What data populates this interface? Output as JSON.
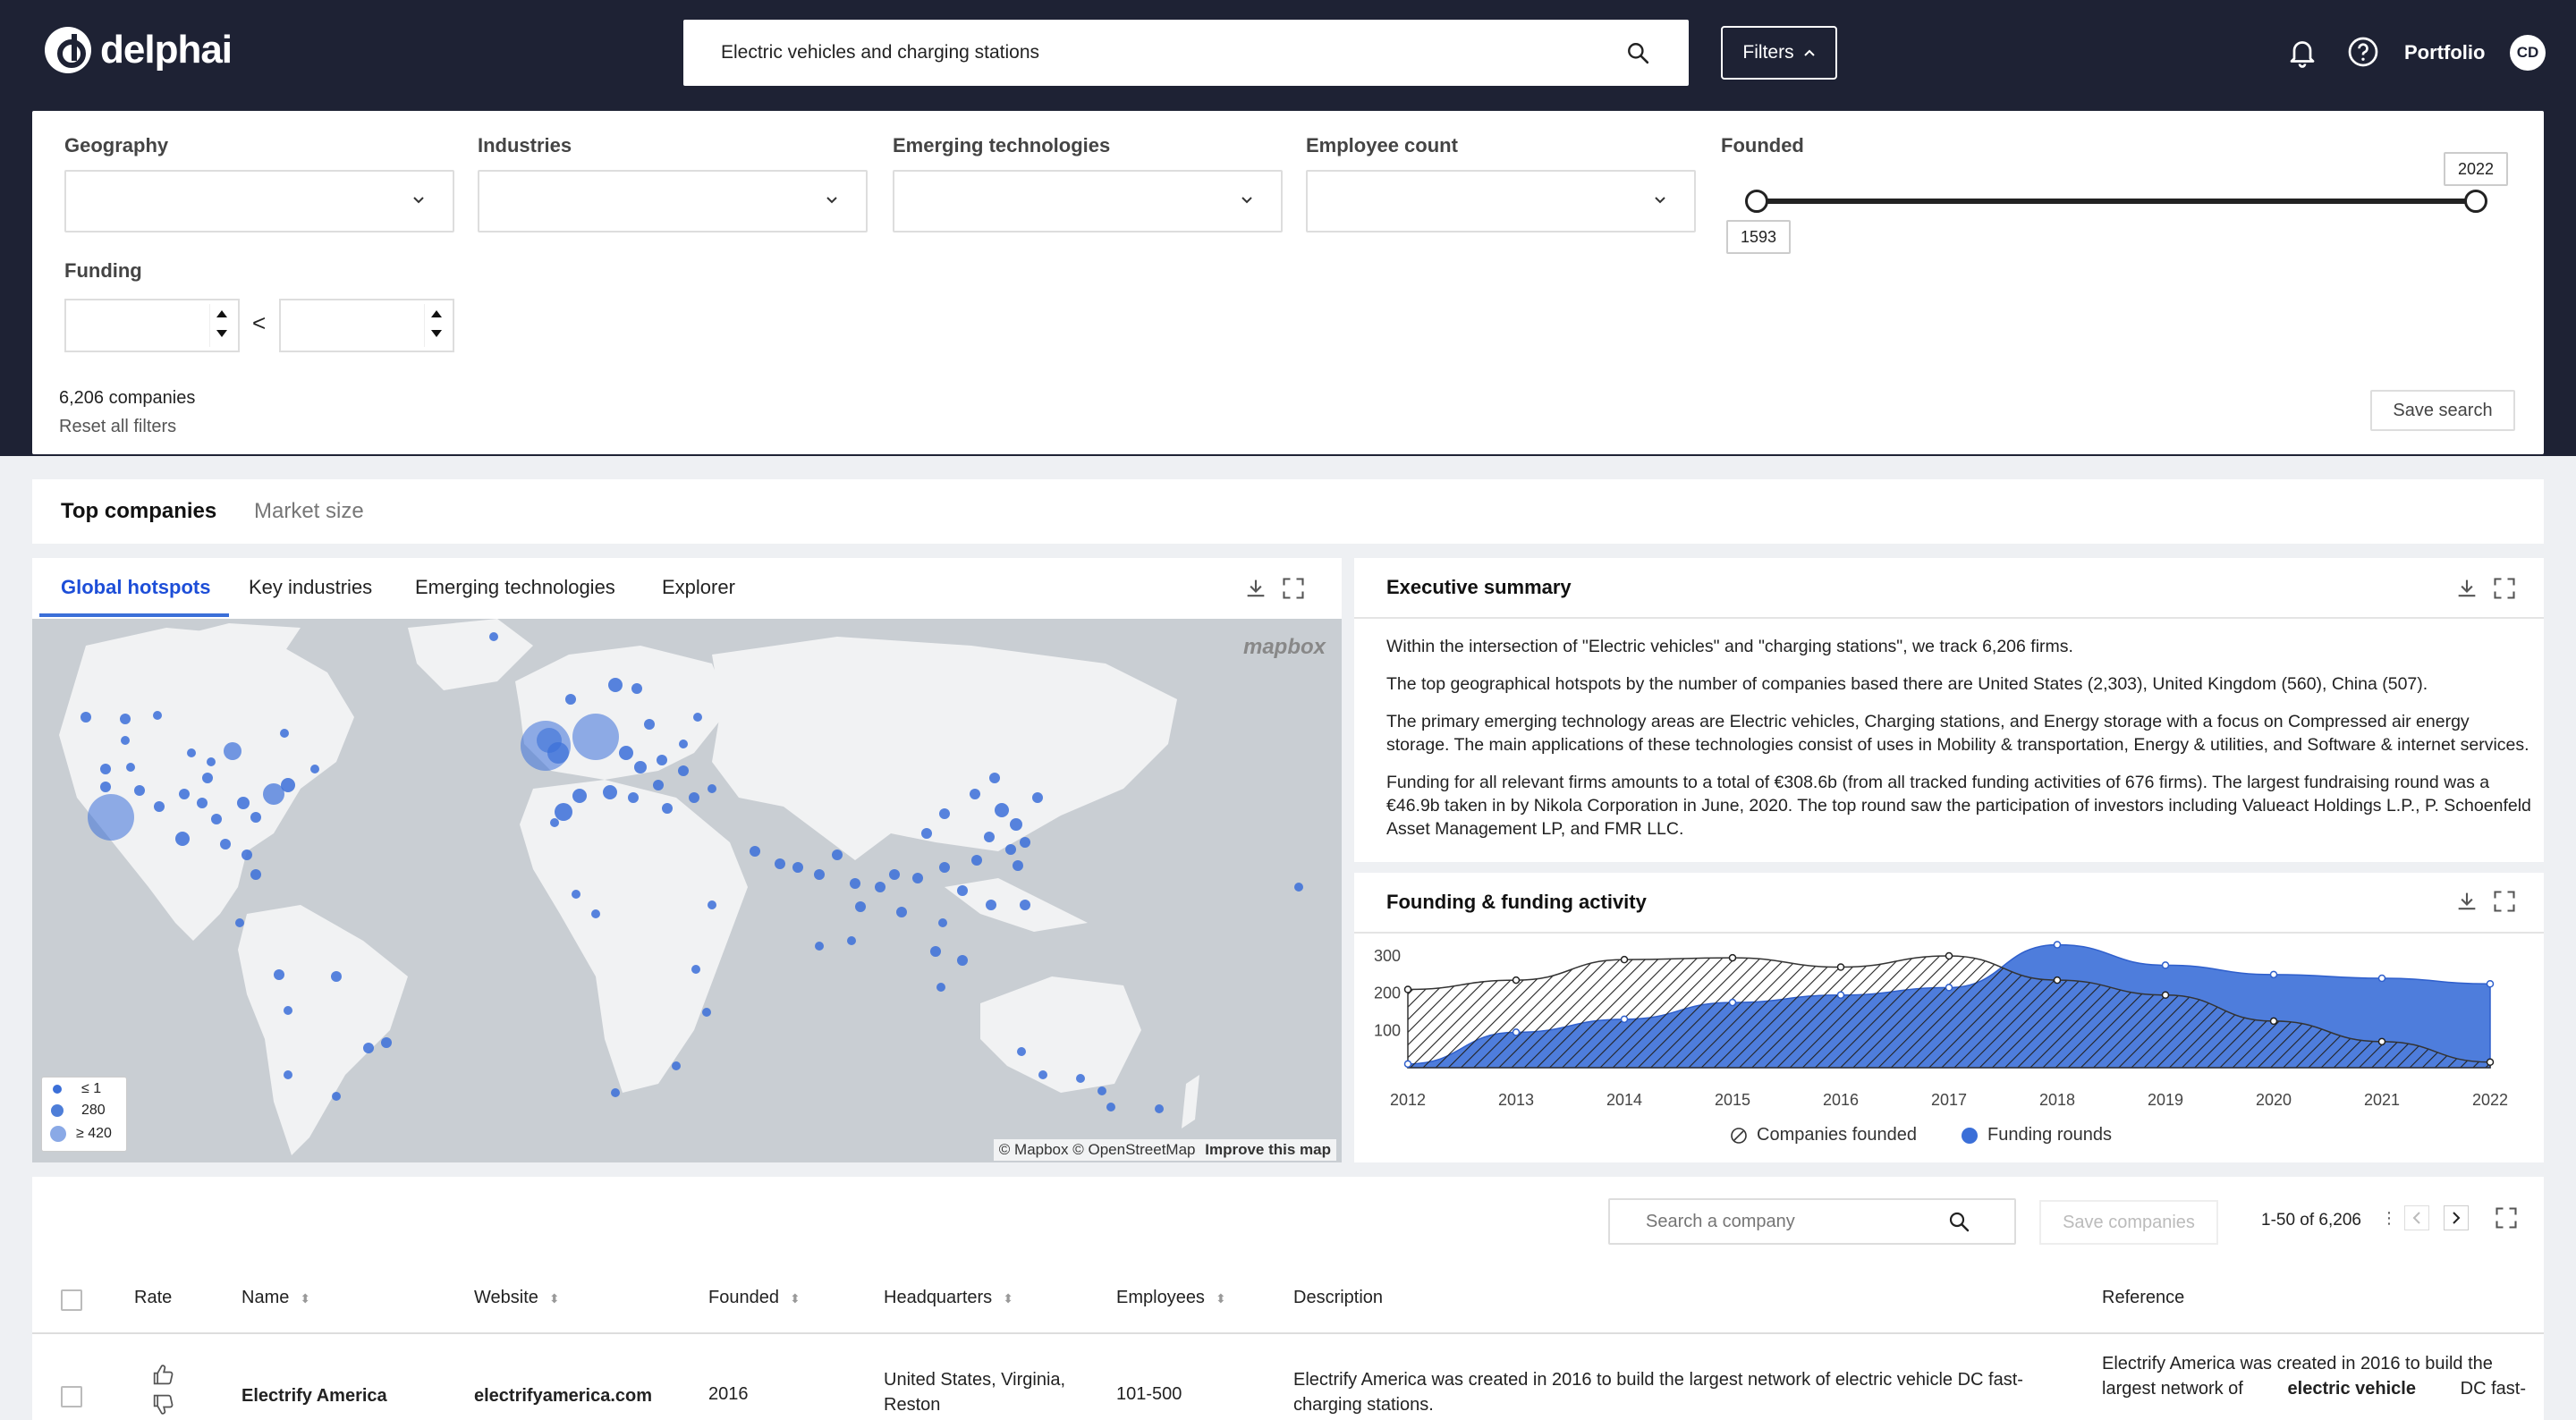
{
  "header": {
    "brand": "delphai",
    "search_value": "Electric vehicles and charging stations",
    "filters_label": "Filters",
    "portfolio_label": "Portfolio",
    "avatar_initials": "CD"
  },
  "filters": {
    "geography_label": "Geography",
    "industries_label": "Industries",
    "emerging_label": "Emerging technologies",
    "employee_label": "Employee count",
    "founded_label": "Founded",
    "founded_min": "1593",
    "founded_max": "2022",
    "funding_label": "Funding",
    "funding_separator": "<",
    "companies_count": "6,206 companies",
    "reset_label": "Reset all filters",
    "save_search_label": "Save search"
  },
  "main_tabs": [
    {
      "label": "Top companies",
      "active": true
    },
    {
      "label": "Market size",
      "active": false
    }
  ],
  "map_panel": {
    "tabs": [
      {
        "label": "Global hotspots",
        "active": true
      },
      {
        "label": "Key industries",
        "active": false
      },
      {
        "label": "Emerging technologies",
        "active": false
      },
      {
        "label": "Explorer",
        "active": false
      }
    ],
    "legend": [
      "≤ 1",
      "280",
      "≥ 420"
    ],
    "attribution": "© Mapbox © OpenStreetMap",
    "improve_label": "Improve this map",
    "mapbox_label": "mapbox",
    "dot_color": "#3b6fd8"
  },
  "exec_summary": {
    "title": "Executive summary",
    "paragraphs": [
      "Within the intersection of \"Electric vehicles\" and \"charging stations\", we track 6,206 firms.",
      "The top geographical hotspots by the number of companies based there are United States (2,303), United Kingdom (560), China (507).",
      "The primary emerging technology areas are Electric vehicles, Charging stations, and Energy storage with a focus on Compressed air energy storage. The main applications of these technologies consist of uses in Mobility & transportation, Energy & utilities, and Software & internet services.",
      "Funding for all relevant firms amounts to a total of €308.6b (from all tracked funding activities of 676 firms). The largest fundraising round was a €46.9b taken in by Nikola Corporation in June, 2020. The top round saw the participation of investors including Valueact Holdings L.P., P. Schoenfeld Asset Management LP, and FMR LLC."
    ]
  },
  "funding_chart": {
    "title": "Founding & funding activity",
    "legend_founded": "Companies founded",
    "legend_funding": "Funding rounds"
  },
  "chart_data": {
    "type": "area",
    "title": "Founding & funding activity",
    "x": [
      "2012",
      "2013",
      "2014",
      "2015",
      "2016",
      "2017",
      "2018",
      "2019",
      "2020",
      "2021",
      "2022"
    ],
    "y_ticks": [
      100,
      200,
      300
    ],
    "ylim": [
      0,
      360
    ],
    "legend_position": "bottom",
    "series": [
      {
        "name": "Companies founded",
        "values": [
          210,
          235,
          290,
          295,
          270,
          300,
          235,
          195,
          125,
          70,
          15
        ],
        "pattern": "hatched"
      },
      {
        "name": "Funding rounds",
        "values": [
          10,
          95,
          130,
          175,
          195,
          215,
          330,
          275,
          250,
          240,
          225
        ],
        "color": "#3b6fd8"
      }
    ]
  },
  "table": {
    "search_placeholder": "Search a company",
    "save_companies_label": "Save companies",
    "pager_text": "1-50 of 6,206",
    "columns": [
      "Rate",
      "Name",
      "Website",
      "Founded",
      "Headquarters",
      "Employees",
      "Description",
      "Reference"
    ],
    "rows": [
      {
        "name": "Electrify America",
        "website": "electrifyamerica.com",
        "founded": "2016",
        "hq_line1": "United States, Virginia,",
        "hq_line2": "Reston",
        "employees": "101-500",
        "desc_line1": "Electrify America was created in 2016 to build the largest network of electric vehicle DC fast-",
        "desc_line2": "charging stations.",
        "ref_line1": "Electrify America was created in 2016 to build the",
        "ref_line2_pre": "largest network of",
        "ref_bold": "electric vehicle",
        "ref_line2_post": "DC fast-"
      }
    ]
  }
}
